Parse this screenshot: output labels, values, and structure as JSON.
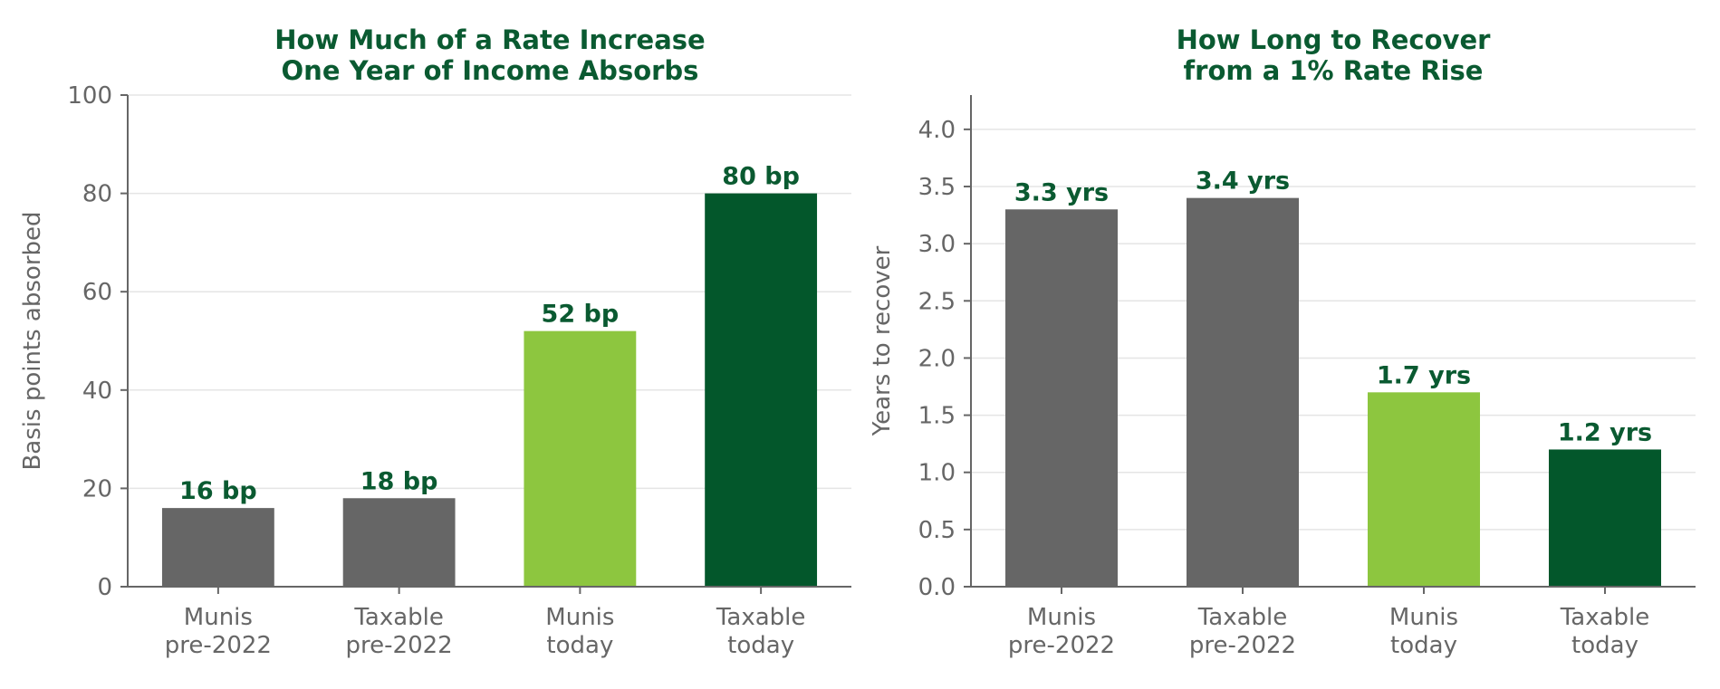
{
  "colors": {
    "gray": "#666666",
    "light_green": "#8dc63f",
    "dark_green": "#03572b",
    "title_green": "#0a5a31",
    "text_gray": "#666666"
  },
  "chart_data": [
    {
      "type": "bar",
      "title": [
        "How Much of a Rate Increase",
        "One Year of Income Absorbs"
      ],
      "xlabel": "",
      "ylabel": "Basis points absorbed",
      "categories": [
        [
          "Munis",
          "pre-2022"
        ],
        [
          "Taxable",
          "pre-2022"
        ],
        [
          "Munis",
          "today"
        ],
        [
          "Taxable",
          "today"
        ]
      ],
      "values": [
        16,
        18,
        52,
        80
      ],
      "data_labels": [
        "16 bp",
        "18 bp",
        "52 bp",
        "80 bp"
      ],
      "bar_colors": [
        "#666666",
        "#666666",
        "#8dc63f",
        "#03572b"
      ],
      "ylim": [
        0,
        100
      ],
      "yticks": [
        0,
        20,
        40,
        60,
        80,
        100
      ],
      "ytick_labels": [
        "0",
        "20",
        "40",
        "60",
        "80",
        "100"
      ],
      "grid": true
    },
    {
      "type": "bar",
      "title": [
        "How Long to Recover",
        "from a 1% Rate Rise"
      ],
      "xlabel": "",
      "ylabel": "Years to recover",
      "categories": [
        [
          "Munis",
          "pre-2022"
        ],
        [
          "Taxable",
          "pre-2022"
        ],
        [
          "Munis",
          "today"
        ],
        [
          "Taxable",
          "today"
        ]
      ],
      "values": [
        3.3,
        3.4,
        1.7,
        1.2
      ],
      "data_labels": [
        "3.3 yrs",
        "3.4 yrs",
        "1.7 yrs",
        "1.2 yrs"
      ],
      "bar_colors": [
        "#666666",
        "#666666",
        "#8dc63f",
        "#03572b"
      ],
      "ylim": [
        0,
        4.3
      ],
      "yticks": [
        0,
        0.5,
        1.0,
        1.5,
        2.0,
        2.5,
        3.0,
        3.5,
        4.0
      ],
      "ytick_labels": [
        "0.0",
        "0.5",
        "1.0",
        "1.5",
        "2.0",
        "2.5",
        "3.0",
        "3.5",
        "4.0"
      ],
      "grid": true
    }
  ]
}
